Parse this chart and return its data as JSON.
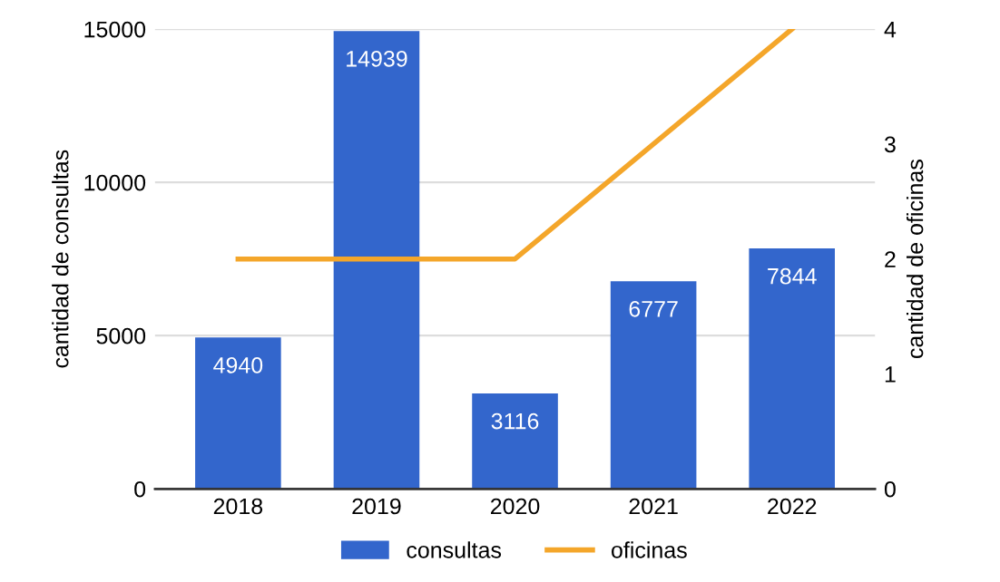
{
  "chart_data": {
    "type": "bar",
    "categories": [
      "2018",
      "2019",
      "2020",
      "2021",
      "2022"
    ],
    "series": [
      {
        "name": "consultas",
        "color": "#3366cc",
        "values": [
          4940,
          14939,
          3116,
          6777,
          7844
        ],
        "value_labels": [
          "4940",
          "14939",
          "3116",
          "6777",
          "7844"
        ]
      },
      {
        "name": "oficinas",
        "type": "line",
        "axis": "y2",
        "color": "#f4a62a",
        "values": [
          2,
          2,
          2,
          3,
          4
        ]
      }
    ],
    "ylabel": "cantidad de consultas",
    "y2label": "cantidad de oficinas",
    "ylim": [
      0,
      15000
    ],
    "yticks": [
      0,
      5000,
      10000,
      15000
    ],
    "y2lim": [
      0,
      4
    ],
    "y2ticks": [
      0,
      1,
      2,
      3,
      4
    ],
    "grid": "y",
    "legend": "bottom",
    "marker": "none",
    "line_style": "solid"
  }
}
